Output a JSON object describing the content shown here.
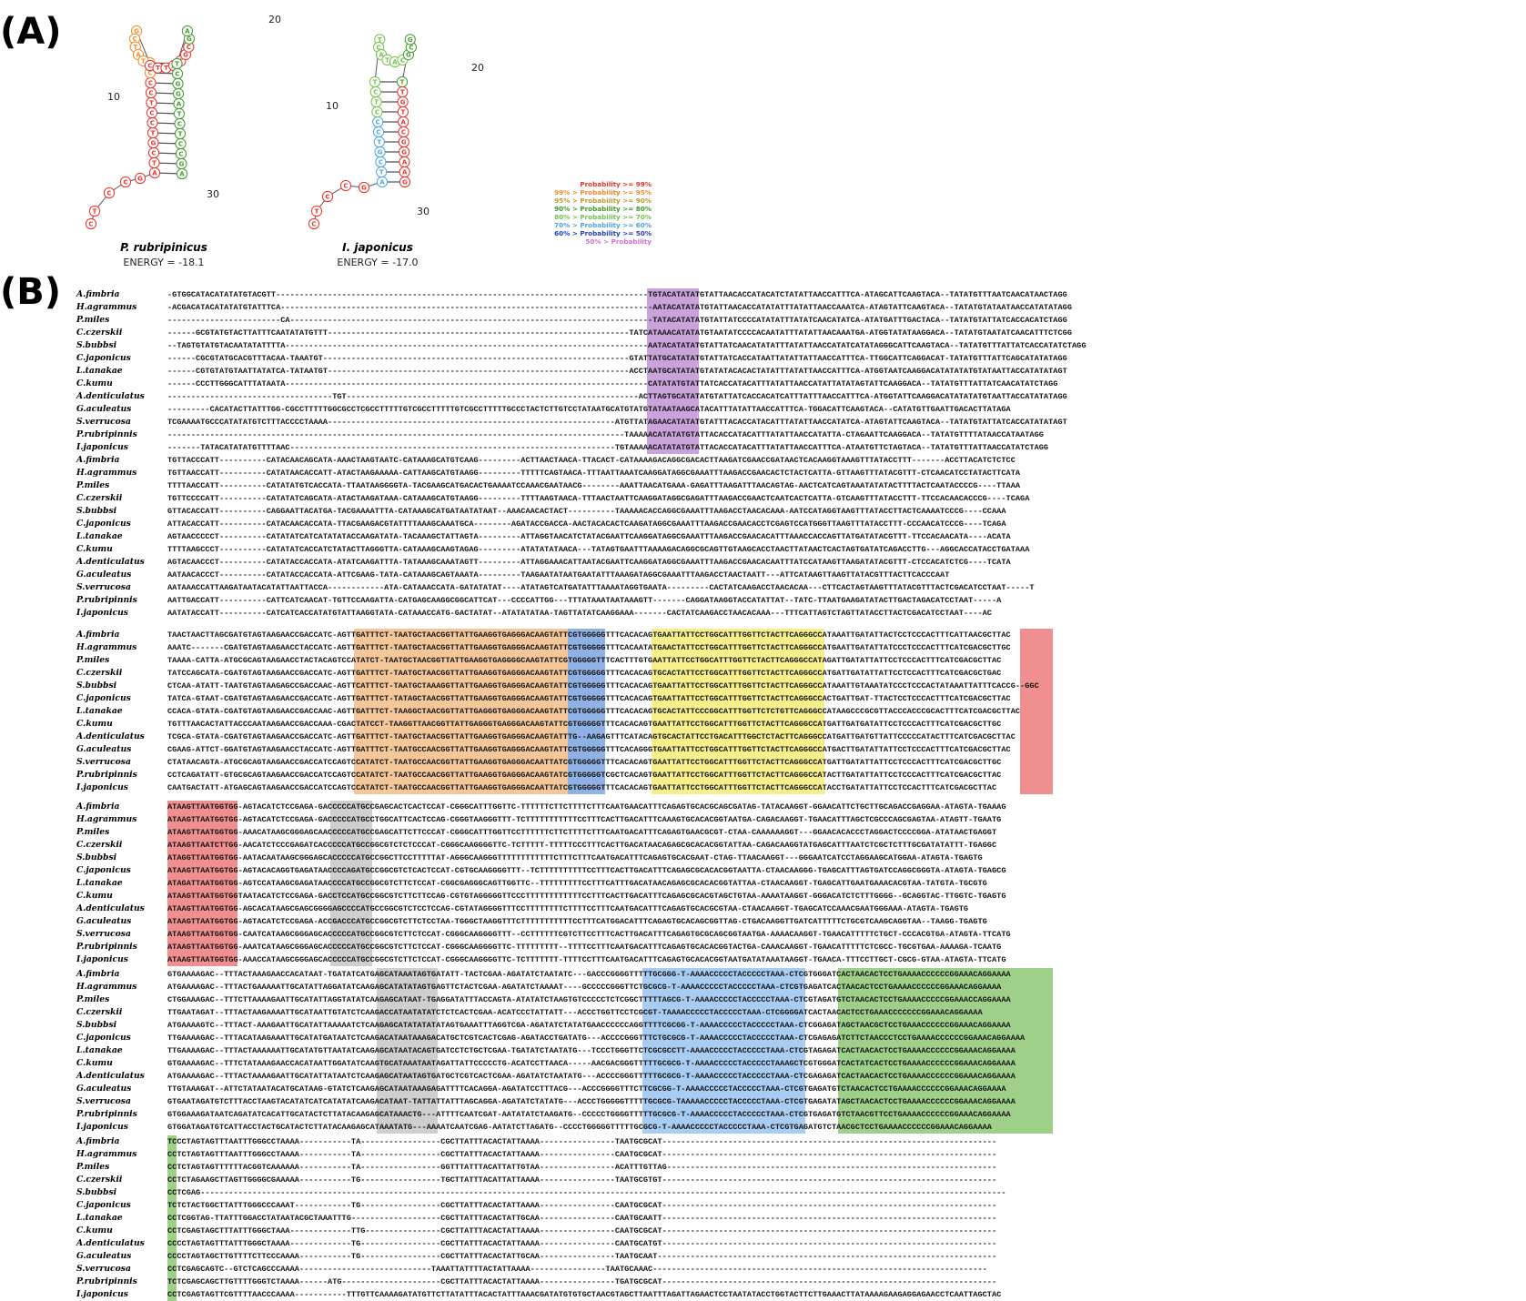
{
  "panel_a_label": "(A)",
  "panel_b_label": "(B)",
  "structures": [
    {
      "species": "P. rubripinicus",
      "energy": "ENERGY = -18.1",
      "ticks": [
        "10",
        "20",
        "30"
      ]
    },
    {
      "species": "I. japonicus",
      "energy": "ENERGY = -17.0",
      "ticks": [
        "10",
        "20",
        "30"
      ]
    }
  ],
  "legend": [
    {
      "label": "Probability >= 99%",
      "color": "#e5322d"
    },
    {
      "label": "99% > Probability >= 95%",
      "color": "#f08a2c"
    },
    {
      "label": "95% > Probability >= 90%",
      "color": "#b59a2e"
    },
    {
      "label": "90% > Probability >= 80%",
      "color": "#3f9a2c"
    },
    {
      "label": "80% > Probability >= 70%",
      "color": "#73c04a"
    },
    {
      "label": "70% > Probability >= 60%",
      "color": "#4fa3e0"
    },
    {
      "label": "60% > Probability >= 50%",
      "color": "#1f3fbf"
    },
    {
      "label": "50% > Probability",
      "color": "#d06ed6"
    }
  ],
  "highlight_colors": {
    "purple": "#c9a3d9",
    "orange": "#f3c79a",
    "blue": "#8fb1e3",
    "yellow": "#f6ef8c",
    "red": "#ef8f8f",
    "gray": "#cfcfcf",
    "lightblue": "#a9cdf2",
    "green": "#9fd08a"
  },
  "species": [
    "A.fimbria",
    "H.agrammus",
    "P.miles",
    "C.czerskii",
    "S.bubbsi",
    "C.japonicus",
    "L.tanakae",
    "C.kumu",
    "A.denticulatus",
    "G.aculeatus",
    "S.verrucosa",
    "P.rubripinnis",
    "I.japonicus"
  ],
  "blocks": [
    {
      "sequences": [
        "-GTGGCATACATATATGTACGTT-------------------------------------------------------------------------------TGTACATATATGTATTAACACCATACATCTATATTAACCATTTCA-ATAGCATTCAAGTACA--TATATGTTTAATCAACATAACTAGG",
        "-ACGACATACATATATGTATTTCA-------------------------------------------------------------------------------AATACATATATGTATTAACACCATATATTTATATTAACCAAATCA-ATAGTATTCAAGTACA--TATATGTATAATAACCATATATAGG",
        "------------------------CA-----------------------------------------------------------------------------TATACATATATGTATTATCCCCATATATTTATATCAACATATCA-ATATGATTTGACTACA--TATATGTATTATCACCACATCTAGG",
        "------GCGTATGTACTTATTTCAATATATGTTT----------------------------------------------------------------TATCATAAACATATATGTAATATCCCCACAATATTTATATTAACAAATGA-ATGGTATATAAGGACA--TATATGTAATATCAACATTTCTCGG",
        "--TAGTGTATGTACAATATATTTTA-----------------------------------------------------------------------------AATACATATATGTATTATCAACATATATTTATATTAACCATATCATATAGGGCATTCAAGTACA--TATATGTTTATTATCACCATATCTAGG",
        "------CGCGTATGCACGTTTACAA-TAAATGT-----------------------------------------------------------------GTATTATGCATATATGTATTATCACCATAATTATATTATTAACCATTTCA-TTGGCATTCAGGACAT-TATATGTTTATTCAGCATATATAGG",
        "------CGTGTATGTAATTATATCA-TATAATGT----------------------------------------------------------------ACCTAATGCATATATGTATATACACACTATATTTATATTAACCATTTCA-ATGGTAATCAAGGACATATATATGTATAATTACCATATATAGT",
        "------CCCTTGGGCATTTATAATA-----------------------------------------------------------------------------CATATATGTATTATCACCATACATTTATATTAACCATATTATATAGTATTCAAGGACA--TATATGTTTATTATCAACATATCTAGG",
        "-----------------------------------TGT--------------------------------------------------------------ACTTAGTGCATATATGTATTATCACCACATCATTTATTTAACCATTTCA-ATGGTATTCAAGGACATATATATGTAATTACCATATATAGG",
        "---------CACATACTTATTTGG-CGCCTTTTTGGCGCCTCGCCTTTTTGTCGCCTTTTTGTCGCCTTTTTGCCCTACTCTTGTCCTATAATGCATGTATGTATAATAAGCATACATTTATATTAACCATTTCA-TGGACATTCAAGTACA--CATATGTTGAATTGACACTTATAGA",
        "TCGAAAATGCCCATATATGTCTTTACCCCTAAAA-------------------------------------------------------------ATGTTATAGAACATATATGTATTTACACCATACATTTATATTAACCATATCA-ATAGTATTCAAGTACA--TATATGTATTATCACCATATATAGT",
        "-------------------------------------------------------------------------------------------------TAAAAACATATATGTATTACACCATACATTTATATTAACCATATTA-CTAGAATTCAAGGACA--TATATGTTTTATAACCATAATAGG",
        "-------TATACATATATGTTTTAAC---------------------------------------------------------------------TGTAAAAACATATATGTATTACACCATACATTTATATTAACCATTTCA-ATAATGTTCTAGTACA--TATATGTTTATTAACCATATCTAGG"
      ],
      "highlights": [
        {
          "start": 103,
          "len": 11,
          "color": "purple"
        }
      ]
    },
    {
      "sequences": [
        "TGTTACCCATT----------CATACAACAGCATA-AAACTAAGTAATC-CATAAAGCATGTCAAG---------ACTTAACTAACA-TTACACT-CATAAAAGACAGGCGACACTTAAGATCGAACCGATAACTCACAAGGTAAAGTTTATACCTTT-------ACCTTACATCTCTCC",
        "TGTTAACCATT----------CATATAACACCATT-ATACTAAGAAAAA-CATTAAGCATGTAAGG---------TTTTTCAGTAACA-TTTAATTAAATCAAGGATAGGCGAAATTTAAGACCGAACACTCTACTCATTA-GTTAAGTTTATACGTTT-CTCAACATCCTATACTTCATA",
        "TTTTAACCATT----------CATATATGTCACCATA-TTAATAAGGGGTA-TACGAAGCATGACACTGAAAATCCAAACGAATAACG--------AAATTAACATGAAA-GAGATTTAAGATTTAACAGTAG-AACTCATCAGTAAATATATACTTTTACTCAATACCCCG----TTAAA",
        "TGTTCCCCATT----------CATATATCAGCATA-ATACTAAGATAAA-CATAAAGCATGTAAGG---------TTTTAAGTAACA-TTTAACTAATTCAAGGATAGGCGAGATTTAAGACCGAACTCAATCACTCATTA-GTCAAGTTTATACCTTT-TTCCACAACACCCG----TCAGA",
        "GTTACACCATT----------CAGGAATTACATGA-TACGAAAATTTA-CATAAAGCATGATAATATAAT--AAACAACACTACT----------TAAAAACACCAGGCGAAATTTAAGACCTAACACAAA-AATCCATAGGTAAGTTTATACCTTACTCAAAATCCCG----CCAAA",
        "ATTACACCATT----------CATACAACACCATA-TTACGAAGACGTATTTTAAAGCAAATGCA--------AGATACCGACCA-AACTACACACTCAAGATAGGCGAAATTTAAGACCGAACACCTCGAGTCCATGGGTTAAGTTTATACCTTT-CCCAACATCCCG----TCAGA",
        "AGTAACCCCCT----------CATATATCATCATATATACCAAGATATA-TACAAAGCTATTAGTA---------ATTAGGTAACATCTATACGAATTCAAGGATAGGCGAAATTTAAGACCGAACACATTTAAACCACCAGTTATGATATACGTTT-TTCCACAACATA----ACATA",
        "TTTTAAGCCCT----------CATATATCACCATCTATACTTAGGGTTA-CATAAAGCAAGTAGAG---------ATATATATAACA---TATAGTGAATTTAAAAGACAGGCGCAGTTGTAAGCACCTAACTTATAACTCACTAGTGATATCAGACCTTG---AGGCACCATACCTGATAAA",
        "AGTACAACCCT----------CATATACCACCATA-ATATCAAGATTTA-TATAAAGCAAATAGTT---------ATTAGGAAACATTAATACGAATTCAAGGATAGGCGAAATTTAAGACCGAACACAATTTATCCATAAGTTAAGATATACGTTT-CTCCACATCTCG----TCATA",
        "AATAACACCCT----------CATATACCACCATA-ATTCGAAG-TATA-CATAAAGCAGTAAATA---------TAAGAATATAATGAATATTTAAAGATAGGCGAAATTTAAGACCTAACTAATT---ATTCATAAGTTAAGTTATACGTTTACTTCACCCAAT",
        "AATAAACCATTAAGATAATACATATTAATTACCA------------ATA-CATAAACCATA-GATATATAT----ATATAGTCATGATATTTAAAATAGGTGAATA---------CACTATCAAGACCTAACACAA---CTTCACTAGTAAGTTTATACGTTTACTCGACATCCTAAT-----T",
        "AATTGACCATT----------CATTCATCAACAT-TGTTCCAAGATTA-CATGAGCAAGGCGGCATTCAT---CCCCATTGG---TTTATAAATAATAAAGTT-------CAGGATAAGGTACCATATTAT--TATC-TTAATGAAGATATACTTGACTAGACATCCTAAT-----A",
        "AATATACCATT----------CATCATCACCATATGTATTAAGGTATA-CATAAACCATG-GACTATAT--ATATATATAA-TAGTTATATCAAGGAAA-------CACTATCAAGACCTAACACAAA---TTTCATTAGTCTAGTTATACCTTACTCGACATCCTAAT----AC"
      ],
      "highlights": []
    },
    {
      "sequences": [
        "TAACTAACTTAGCGATGTAGTAAGAACCGACCATC-AGTTGATTTCT-TAATGCTAACGGTTATTGAAGGTGAGGGACAAGTATTCGTGGGGGTTTCACACAGTGAATTATTCCTGGCATTTGGTTCTACTTCAGGGCCATAAATTGATATTACTCCTCCCACTTTCATTAACGCTTAC",
        "AAATC-------CGATGTAGTAAGAACCTACCATC-AGTTGATTTCT-TAATGCTAACGGTTATTGAAGGTGAGGGACAAGTATTCGTGGGGGTTTCACAATATGAACTATTCCTGGCATTTGGTTCTACTTCAGGGCCATGAATTGATATTATCCCTCCCACTTTCATCGACGCTTGC",
        "TAAAA-CATTA-ATGCGCAGTAAGAACCTACTACAGTCCATATCT-TAATGCTAACGGTTATTGAAGGTGAGGGGCAAGTATTCGTGGGGGTTTCACTTTGTGAATTATTCCTGGCATTTGGTTCTACTTCAGGGCCATAGATTGATATTATTCCTCCCACTTTCATCGACGCTTAC",
        "TATCCAGCATA-CGATGTAGTAAGAACCGACCATC-AGTTGATTTCT-TAATGCTAACGGTTATTGAAGGTGAGGGACAAGTATTCGTGGGGGTTTCACACAGTGCACTATTCCTGGCATTTGGTTCTACTTCAGGGCCATGATTGATATTATTCCTCCACTTTCATCGACGCTGAC",
        "CTCAA-ATATT-TAATGTAGTAAGAGCCGACCAAC-AGTTCATTTCT-TAATGCTAAAGGTTATTGAAGGTGAGGGACAAGTATTCGTGGGGGTTTCACACAGTGAATTATTCCTGGCATTTGGTTCTACTTCAGGGCCATAAATTGTAAATATCCCTCCCACTATAAATTATTTCACCG--GGC",
        "TATCA-GTAAT-CGATGTAGTAAGAACCGACCATC-AGTTGATTTCT-TATAGCTAACGGTTATTGAAGGTGAGGGACAAGTATTCGTGGGGGTTTCACACAGTGAATTATTCCTGGCATTTGGTTCTACTTCAGGGCCACTGATTGAT-TTACTCCTCCCACTTTCATCGACGCTTAC",
        "CCACA-GTATA-CGATGTAGTAAGAACCGACCAAC-AGTTGATTTCT-TAAGGCTAACGGTTATTGAGGGTGAGGGACAAGTATTCGTGGGGGTTTCACACAGTGCACTATTCCCGGCATTTGGTTCTCTGTTCAGGGCCATAAGCCCGCGTTACCCACCCGCACTTTCATCGACGCTTAC",
        "TGTTTAACACTATTACCCAATAAGAACCGACCAAA-CGACTATCCT-TAAGGTTAACGGTTATTGAGGGTGAGGGACAAGTATTCGTGGGGGTTTCACACAGTGAATTATTCCTGGCATTTGGTTCTACTTCAGGGCCATGATTGATGATATTCCTCCCACTTTCATCGACGCTTGC",
        "TCGCA-GTATA-CGATGTAGTAAGAACCGACCATC-AGTTGATTTCT-TAATGCTAACGGTTATTGAAGGTGAGGGACAAGTATTTG--AAGAGTTTCATACAGTGCACTATTCCTGACATTTGGCTCTACTTCAGGGCCATGATTGATGTTATTCCCCCATACTTTCATCGACGCTTAC",
        "CGAAG-ATTCT-GGATGTAGTAAGAACCTACCATC-AGTTGATTTCT-TAATGCCAACGGTTATTGAAGGTGAGGGACAAGTATTCGTGGGGGTTTCACAGGGTGAATTATTCCTGGCATTTGGTTCTACTTCAGGGCCATGACTTGATATTATTCCTCCCACTTTCATCGACGCTTAC",
        "CTATAACAGTA-ATGCGCAGTAAGAACCGACCATCCAGTCCATATCT-TAATGCCAACGGTTATTGAAGGTGAGGGACAATTATCGTGGGGGTTTCACACAGTGAATTATTCCTGGCATTTGGTTCTACTTCAGGGCCATGATTGATATTATTCCTCCCACTTTCATCGACGCTTGC",
        "CCTCAGATATT-GTGCGCAGTAAGAACCGACCATCCAGTCCATATCT-TAATGCCAACGGTTATTGAAGGTGAGGGACAAGTATCGTGGGGGTCGCTCACAGTGAATTATTCCTGGCATTTGGTTCTACTTCAGGGCCATACTTGATATTATTCCTCCCACTTTCATCGACGCTTAC",
        "CAATGACTATT-ATGAGCAGTAAGAACCGACCATCCAGTCCATATCT-TAATGCCAACGGTTATTGAAGGTGAGGGACAATTATCGTGGGGGTTTCACACAGTGAATTATTCCTGGCATTTGGTTCTACTTCAGGGCCATACCTGATATTATTCCTCCACTTTCATCGACGCTTAC"
      ],
      "highlights": [
        {
          "start": 40,
          "len": 46,
          "color": "orange"
        },
        {
          "start": 86,
          "len": 8,
          "color": "blue"
        },
        {
          "start": 104,
          "len": 37,
          "color": "yellow"
        },
        {
          "start": 183,
          "len": 7,
          "color": "red"
        }
      ]
    },
    {
      "sequences": [
        "ATAAGTTAATGGTGG-AGTACATCTCCGAGA-GACCCCCATGCCGAGCACTCACTCCAT-CGGGCATTTGGTTC-TTTTTTCTTCTTTTCTTTCAATGAACATTTCAGAGTGCACGCAGCGATAG-TATACAAGGT-GGAACATTCTGCTTGCAGACCGAGGAA-ATAGTA-TGAAAG",
        "ATAAGTTAATGGTGG-AGTACATCTCCGAGA-GACCCCCATGCCTGGCATTCACTCCAG-CGGGTAAGGGTTT-TCTTTTTTTTTTTCCTTTCACTTGACATTTCAAAGTGCACACGGTAATGA-CAGACAAGGT-TGAACATTTAGCTCGCCCAGCGAGTAA-ATAGTT-TGAATG",
        "ATAAGTTAATGGTGG-AAACATAAGCGGGAGCAACCCCCATGCCGAGCATTCTTCCCAT-CGGGCATTTGGTTCCTTTTTTCTTCTTTTCTTTCAATGACATTTCAGAGTGAACGCGT-CTAA-CAAAAAAGGT---GGAACACACCCTAGGACTCCCCGGA-ATATAACTGAGGT",
        "ATAAGTTAATCTTGG-AACATCTCCCGAGATCACCCCCATGCCGGCGTCTCTCCCAT-CGGGCAAGGGGTTC-TCTTTTT-TTTTTCCCTTTCACTTGACATAACAGAGCGCACACGGTATTAA-CAGACAAGGTATGAGCATTTAATCTCGCTCTTTGCGATATATTT-TGAGGC",
        "ATAGGTTAATGGTGG-AATACAATAAGCGGGAGCACCCCCATGCCGGCTTCCTTTTTAT-AGGGCAAGGGTTTTTTTTTTTTCTTTCTTTCAATGACATTTCAGAGTGCACGAAT-CTAG-TTAACAAGGT---GGGAATCATCCTAGGAAGCATGGAA-ATAGTA-TGAGTG",
        "ATAAGTTAATGGTGG-AGTACACAGGTGAGATAACCCCAGATGCCGGCGTCTCACTCCAT-CGTGCAAGGGGTTT--TCTTTTTTTTTTCCTTTCACTTGACATTTCAGAGCGCACACGGTAATTA-CTAACAAGGG-TGAGCATTTAGTGATCCAGGCGGGTA-ATAGTA-TGAGCG",
        "ATAGATTAATGGTGG-AGTCCATAAGCGAGATAACCCCATGCCGGCGTCTTCTCCAT-CGGCGAGGGCAGTTGGTTC--TTTTTTTTTCCTTTCATTTGACATAACAGAGCGCACACGGTATTAA-CTAACAAGGT-TGAGCATTGAATGAAACACGTAA-TATGTA-TGCGTG",
        "ATAAGTTAATGGTGGTAATACATCTCCGAGA-GACCTCCATGCCGGCGTCTTCTTCCAG-CGTGTAGGGGGTTCCCTTTTTTTTTTTTCCTTTCACTTGACATTTCAGAGCGCACGTAGCTGTAA-AAAATAAGGT-GGGACATCTCTTTGGGG--GCAGGTAC-TTGGTC-TGAGTG",
        "ATAAGTTAATGGTGG-AGCACATAAGCGAGCGGGGAGCCCCATGCCGGCGTCTCCTCCAG-CGTATAGGGGTTTCCTTTTTTTTCTTTTCCTTTCAATGACATTTCAGAGTGCACGCGTAA-CTAACAAGGT-TGAGCATCCAAACGAATGGGAAA-ATAGTA-TGAGTG",
        "ATAAGTTAATGGTGG-AGTACATCTCCGAGA-ACCGACCCATGCCGGCGTCTTCTCCTAA-TGGGCTAAGGTTTCTTTTTTTTTTTCCTTTCATGGACATTTCAGAGTGCACAGCGGTTAG-CTGACAAGGTTGATCATTTTTCTGCGTCAAGCAGGTAA--TAAGG-TGAGTG",
        "ATAAGTTAATGGTGG-CAATCATAAGCGGGAGCACCCCCATGCCGGCGTCTTCTCCAT-CGGGCAAGGGGTTT--CCTTTTTTCGTCTTCCTTTCACTTGACATTTCAGAGTGCGCAGCGGTAATGA-AAAACAAGGT-TGAACATTTTTCTGCT-CCCACGTGA-ATAGTA-TTCATG",
        "ATAAGTTAATGGTGG-AAATCATAAGCGGGAGCACCCCCATGCCGGCGTCTTCTCCAT-CGGGCAAGGGGTTC-TTTTTTTTT--TTTTCCTTTCAATGACATTTCAGAGTGCACACGGTACTGA-CAAACAAGGT-TGAACATTTTTCTCGCC-TGCGTGAA-AAAAGA-TCAATG",
        "ATAAGTTAATGGTGG-AAACCATAAGCGGGAGCACCCCCATGCCGGCGTCTTCTCCAT-CGGGCAAGGGGTTC-TCTTTTTTT-TTTTCCTTTCAATGACATTTCAGAGTGCACACGGTAATGATATAAATAAGGT-TGAACA-TTTCCTTGCT-CGCG-GTAA-ATAGTA-TTCATG"
      ],
      "highlights": [
        {
          "start": 0,
          "len": 15,
          "color": "red"
        },
        {
          "start": 35,
          "len": 9,
          "color": "gray"
        }
      ]
    },
    {
      "sequences": [
        "GTGAAAAGAC--TTTACTAAAGAACCACATAAT-TGATATCATGAGCATAAATAGTGATATT-TACTCGAA-AGATATCTAATATC---GACCCGGGGTTTTTGCGGG-T-AAAACCCCCTACCCCCTAAA-CTCGTGGGATCACTAACACTCCTGAAAACCCCCCGGAAACAGGAAAA",
        "ATGAAAAGAC--TTTACTGAAAAATTGCATATTAGGATATCAAGAGCATATATAGTGAGTTCTACTCGAA-AGATATCTAAAAT----GCCCCCGGGTTCTGCGCG-T-AAAACCCCCTACCCCCTAAA-CTCGTGAGATCACTAACACTCCTGAAAACCCCCCGGAAACAGGAAAA",
        "CTGGAAAGAC--TTTCTTAAAAGAATTGCATATTAGGTATATCAAGAGCATAAT-TGAGGATATTTACCAGTA-ATATATCTAAGTGTCCCCCTCTCGGCTTTTTAGCG-T-AAAACCCCCTACCCCCTAAA-CTCGTAGATGTCTAACACTCCTGAAAACCCCCGGAAACCAGGAAAA",
        "TTGAATAGAT--TTTACTAAGAAAATTGCATAATTGTATCTCAAGACCATAATATATCTCTCACTCGAA-ACATCCCTATTATT---ACCCTGGTTCCTCGCGT-TAAAACCCCCTACCCCCTAAA-CTCGGGGATCACTAACACTCCTGAAACCCCCCCGGAAACAGGAAAA",
        "ATGAAAAGTC--TTTACT-AAAGAATTGCATATTAAAAATCTCAAGAGCATATATATATAGTGAAATTTAGGTCGA-AGATATCTATATGAACCCCCCAGGTTTTCGCGG-T-AAAACCCCCTACCCCCTAAA-CTCGGAGATAGCTAACGCTCCTGAAACCCCCCGGAAACAGGAAAA",
        "TTGAAAAGAC--TTTACATAAGAAATTGCATATGATAATCTCAAGACATAATAAAGACATGCTCGTCACTCGAG-AGATACCTGATATG---ACCCCGGGTTTCTGCGCG-T-AAAACCCCCTACCCCCTAAA-CTCGAGAGATCTTCTAACCCTCCTGAAAACCCCCCGGAAACAGGAAAA",
        "TTGAAAAGAC--TTTACTAAAAAATTGCATATGTTAATATCAAGAGCATAATACAGTGATCCTCTGCTCGAA-TGATATCTAATATG---TCCCTGGGTTCTCGCGCCTT-AAAACCCCCTACCCCCTAAA-CTCGTAGAGATCACTAACACTCCTGAAAACCCCCCGGAAACAGGAAAA",
        "GTGAAAAGAC--TTTCTATAAAGAACCACATAATTGGATATCAAGTGCATAAATAATAGATTATTCCCCCTG-ACATCCTTAACA-----AACGACGGGTTTTTGCGCG-T-AAAACCCCCTACCCCCTAAAGCTCGTGGGATCACTATCACTCCTGAAAACCCCCCGGAAACAGGAAAA",
        "ATGAAAAGAC--TTTACTAAAAGAATTGCATATTATAATCTCAAGAGCATAATAGTGATGCTCGTCACTCGAA-AGATATCTAATATG---ACCCCGGGTTTTTGCGCG-T-AAAACCCCCTACCCCCTAAA-CTCGAGAGATCACTAACACTCCTGAAAACCCCCCGGAAACAGGAAAA",
        "TTGTAAAGAT--ATTCTATAATACATGCATAAG-GTATCTCAAGAGCATAATAAAGAGATTTTCACAGGA-AGATATCCTTTACG---ACCCGGGGTTTCTTCGCGG-T-AAAACCCCCTACCCCCTAAA-CTCGTGAGATGTCTAACACTCCTGAAAACCCCCCGGAAACAGGAAAA",
        "GTGAATAGATGTCTTTACCTAAGTACATATCATCATATATCAAGACATAAT-TATTATTATTTAGCAGGA-AGATATCTATATG---ACCCTGGGGGTTTTTGCGCG-TAAAAACCCCCTACCCCCTAAA-CTCGTGAGATATAGCTAACACTCCTGAAAACCCCCCGGAAACAGGAAAA",
        "GTGGAAAGATAATCAGATATCACATTGCATACTCTTATACAAGAGCATAAACTG---ATTTTCAATCGAT-AATATATCTAAGATG--CCCCCTGGGGTTTTTGCGCG-T-AAAACCCCCTACCCCCTAAA-CTCGTGAGATGTCTAACGTTCCTGAAAACCCCCCGGAAACAGGAAAA",
        "GTGGATAGATGTCATTACCTACTGCATACTCTTATACAAGAGCATAAATATG---AAAATCAATCGAG-AATATCTTAGATG--CCCCTGGGGGTTTTTGCGCG-T-AAAACCCCCTACCCCCTAAA-CTCGTGAGATGTCTAACGCTCCTGAAAACCCCCCGGAAACAGGAAAA"
      ],
      "highlights": [
        {
          "start": 45,
          "len": 13,
          "color": "gray"
        },
        {
          "start": 102,
          "len": 35,
          "color": "lightblue"
        },
        {
          "start": 144,
          "len": 46,
          "color": "green"
        }
      ]
    },
    {
      "sequences": [
        "TCCCTAGTAGTTTAATTTGGGCCTAAAA-----------TA-----------------CGCTTATTTACACTATTAAAA----------------TAATGCGCAT-----------------------------------------------------------------------",
        "CCTCTAGTAGTTTAATTTGGGCCTAAAA-----------TA-----------------CGCTTATTTACACTATTAAAA----------------CAATGCGCAT-----------------------------------------------------------------------",
        "CCTCTAGTAGTTTTTTACGGTCAAAAAA-----------TA-----------------GGTTTATTTACATTATTGTAA----------------ACATTTGTTAG----------------------------------------------------------------------",
        "CCTCTAGAAGCTTAGTTGGGGCGAAAAA-----------TG-----------------TGCTTATTTACATTATTAAAA----------------TAATGCGTGT-----------------------------------------------------------------------",
        "CCTCGAG---------------------------------------------------------------------------------------------------------------------------------------------------------------------------",
        "TCTCTACTGGCTTATTTGGGCCCAAAT------------TG-----------------CGCTTATTTACACTATTAAAA----------------CAATGCGCAT-----------------------------------------------------------------------",
        "CCTCGGTAG-TTATTTGGACCTATAATACGCTAAATTTG-------------------CGCTTATTTACACTATTGCAA----------------CAATGCAATT-----------------------------------------------------------------------",
        "CCTCGAGTAGCTTTATTTGGGCTAAA-------------TTG----------------CGCTTATTTACACTATTAAAA----------------CAATGCGCAT-----------------------------------------------------------------------",
        "CCCCTAGTAGTTTATTTGGGCTAAAA-------------TG-----------------CGCTTATTTACACTATTAAAA----------------CAATGCATGT-----------------------------------------------------------------------",
        "CCCCTAGTAGCTTGTTTTCTTCCCAAAA-----------TG-----------------CGCTTATTTACACTATTGCAA----------------TAATGCAAT------------------------------------------------------------------------",
        "CCTCGAGCAGTC--GTCTCAGCCCAAAA----------------------------TAAATTATTTTACTATTAAAA----------------TAATGCAAAC-----------------------------------------------------------------------",
        "TCTCGAGCAGCTTGTTTTGGGTCTAAAA------ATG---------------------CGCTTATTTACACTATTAAAA----------------TGATGCGCAT-----------------------------------------------------------------------",
        "CCTCGAGTAGTTCGTTTTAACCCAAAA-----------TTTGTTCAAAAGATATGTTCTTATATTTACACTATTTAAACGATATGTGTGCTAACGTAGCTTAATTTAGATTAGAACTCCTAATATACCTGGTACTTCTTGAAACTTATAAAAGAAGAGGAGAACCTCAATTAGCTAC"
      ],
      "highlights": [
        {
          "start": 0,
          "len": 2,
          "color": "green"
        }
      ]
    }
  ]
}
